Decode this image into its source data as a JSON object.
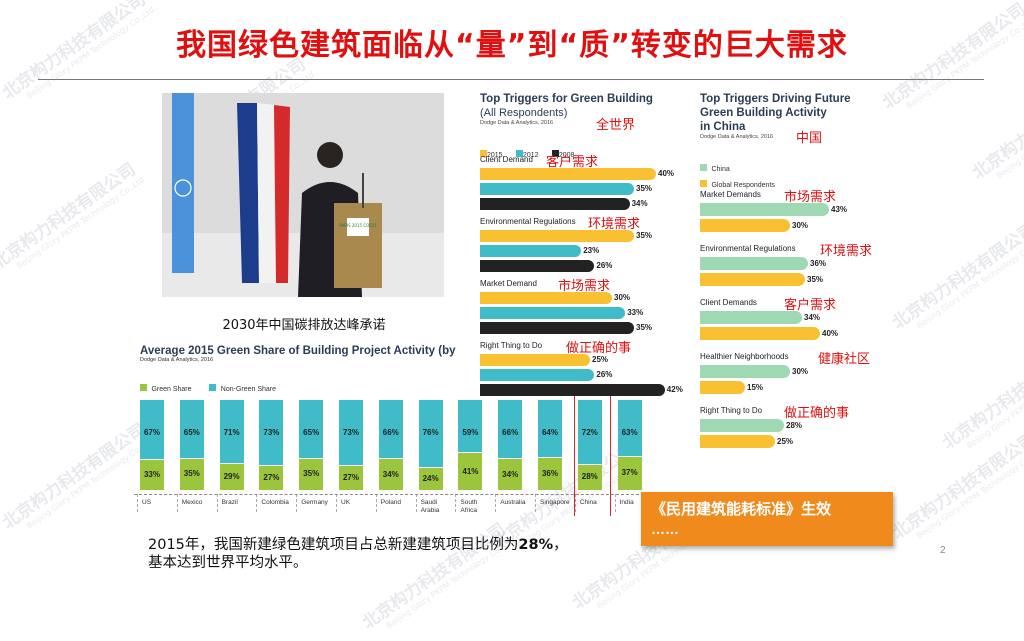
{
  "slide": {
    "title": "我国绿色建筑面临从“量”到“质”转变的巨大需求",
    "photo_caption": "2030年中国碳排放达峰承诺",
    "podium_text": "PARIS 2015 COP21",
    "bottom_text_line1_pre": "2015年，我国新建绿色建筑项目占总新建建筑项目比例为",
    "bottom_text_line1_bold": "28%",
    "bottom_text_line1_post": "，",
    "bottom_text_line2": "基本达到世界平均水平。",
    "orange_box_line1": "《民用建筑能耗标准》生效",
    "orange_box_line2": "……",
    "page_number": "2",
    "watermark_cn": "北京构力科技有限公司",
    "watermark_en": "Beijing Glory PKPM Technology Co.,Ltd."
  },
  "green_share": {
    "title": "Average 2015 Green Share of Building Project Activity (by",
    "source": "Dodge Data & Analytics, 2016",
    "legend_green": "Green Share",
    "legend_nongreen": "Non-Green Share",
    "countries": [
      {
        "name": "US",
        "nongreen": "67%",
        "green": "33%",
        "g": 33
      },
      {
        "name": "Mexico",
        "nongreen": "65%",
        "green": "35%",
        "g": 35
      },
      {
        "name": "Brazil",
        "nongreen": "71%",
        "green": "29%",
        "g": 29
      },
      {
        "name": "Colombia",
        "nongreen": "73%",
        "green": "27%",
        "g": 27
      },
      {
        "name": "Germany",
        "nongreen": "65%",
        "green": "35%",
        "g": 35
      },
      {
        "name": "UK",
        "nongreen": "73%",
        "green": "27%",
        "g": 27
      },
      {
        "name": "Poland",
        "nongreen": "66%",
        "green": "34%",
        "g": 34
      },
      {
        "name": "Saudi Arabia",
        "nongreen": "76%",
        "green": "24%",
        "g": 24
      },
      {
        "name": "South Africa",
        "nongreen": "59%",
        "green": "41%",
        "g": 41
      },
      {
        "name": "Australia",
        "nongreen": "66%",
        "green": "34%",
        "g": 34
      },
      {
        "name": "Singapore",
        "nongreen": "64%",
        "green": "36%",
        "g": 36
      },
      {
        "name": "China",
        "nongreen": "72%",
        "green": "28%",
        "g": 28
      },
      {
        "name": "India",
        "nongreen": "63%",
        "green": "37%",
        "g": 37
      }
    ],
    "highlight_color": "#d9232b"
  },
  "triggers_all": {
    "title_line1": "Top Triggers for Green Building",
    "title_line2": "(All Respondents)",
    "source": "Dodge Data & Analytics, 2016",
    "legend": [
      "2015",
      "2012",
      "2008"
    ],
    "colors": [
      "#f9c131",
      "#3fbcc7",
      "#222222"
    ],
    "label_cn": "全世界",
    "groups": [
      {
        "name": "Client Demand",
        "cn": "客户需求",
        "values": [
          40,
          35,
          34
        ],
        "labels": [
          "40%",
          "35%",
          "34%"
        ]
      },
      {
        "name": "Environmental Regulations",
        "cn": "环境需求",
        "values": [
          35,
          23,
          26
        ],
        "labels": [
          "35%",
          "23%",
          "26%"
        ]
      },
      {
        "name": "Market Demand",
        "cn": "市场需求",
        "values": [
          30,
          33,
          35
        ],
        "labels": [
          "30%",
          "33%",
          "35%"
        ]
      },
      {
        "name": "Right Thing to Do",
        "cn": "做正确的事",
        "values": [
          25,
          26,
          42
        ],
        "labels": [
          "25%",
          "26%",
          "42%"
        ]
      }
    ]
  },
  "triggers_china": {
    "title_line1": "Top Triggers Driving Future",
    "title_line2": "Green Building Activity",
    "title_line3": "in China",
    "source": "Dodge Data & Analytics, 2016",
    "legend": [
      "China",
      "Global Respondents"
    ],
    "colors": [
      "#9fd9b4",
      "#f9c131"
    ],
    "label_cn": "中国",
    "groups": [
      {
        "name": "Market Demands",
        "cn": "市场需求",
        "values": [
          43,
          30
        ],
        "labels": [
          "43%",
          "30%"
        ]
      },
      {
        "name": "Environmental Regulations",
        "cn": "环境需求",
        "values": [
          36,
          35
        ],
        "labels": [
          "36%",
          "35%"
        ]
      },
      {
        "name": "Client Demands",
        "cn": "客户需求",
        "values": [
          34,
          40
        ],
        "labels": [
          "34%",
          "40%"
        ]
      },
      {
        "name": "Healthier Neighborhoods",
        "cn": "健康社区",
        "values": [
          30,
          15
        ],
        "labels": [
          "30%",
          "15%"
        ]
      },
      {
        "name": "Right Thing to Do",
        "cn": "做正确的事",
        "values": [
          28,
          25
        ],
        "labels": [
          "28%",
          "25%"
        ]
      }
    ]
  }
}
